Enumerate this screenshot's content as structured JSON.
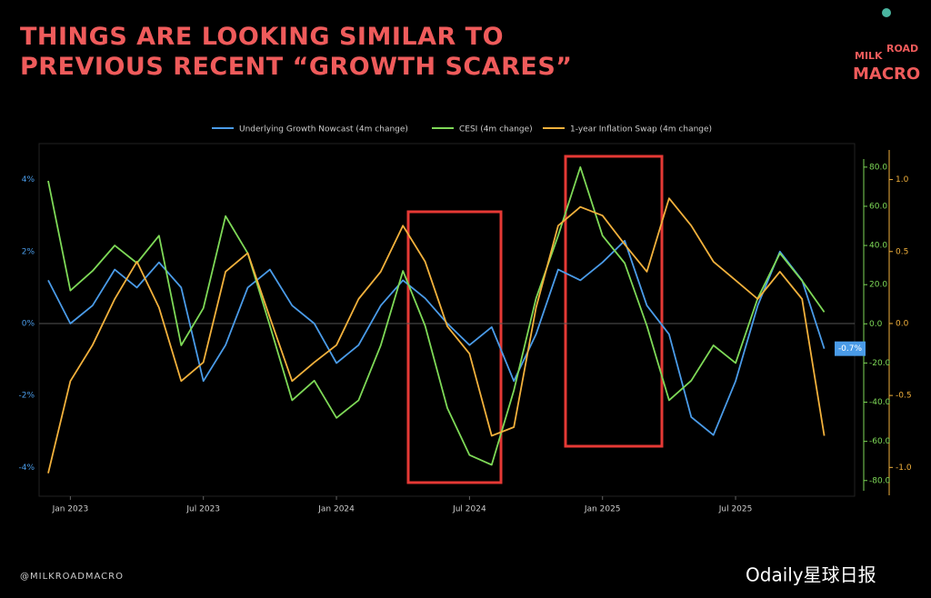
{
  "chart_data": {
    "type": "line",
    "title": "THINGS ARE LOOKING SIMILAR TO PREVIOUS RECENT “GROWTH SCARES”",
    "logo": [
      "MILK",
      "ROAD",
      "MACRO"
    ],
    "source": "@MILKROADMACRO",
    "watermark": "Odaily星球日报",
    "x": [
      "2022-12",
      "2023-01",
      "2023-02",
      "2023-03",
      "2023-04",
      "2023-05",
      "2023-06",
      "2023-07",
      "2023-08",
      "2023-09",
      "2023-10",
      "2023-11",
      "2023-12",
      "2024-01",
      "2024-02",
      "2024-03",
      "2024-04",
      "2024-05",
      "2024-06",
      "2024-07",
      "2024-08",
      "2024-09",
      "2024-10",
      "2024-11",
      "2024-12",
      "2025-01",
      "2025-02",
      "2025-03",
      "2025-04",
      "2025-05",
      "2025-06",
      "2025-07",
      "2025-08",
      "2025-09",
      "2025-10",
      "2025-11"
    ],
    "xlim": [
      "2022-12",
      "2025-12"
    ],
    "xticks": [
      {
        "value": "2023-01",
        "label": "Jan 2023"
      },
      {
        "value": "2023-07",
        "label": "Jul 2023"
      },
      {
        "value": "2024-01",
        "label": "Jan 2024"
      },
      {
        "value": "2024-07",
        "label": "Jul 2024"
      },
      {
        "value": "2025-01",
        "label": "Jan 2025"
      },
      {
        "value": "2025-07",
        "label": "Jul 2025"
      }
    ],
    "ylim": [
      -4.8,
      5.0
    ],
    "yticks": [
      {
        "value": 4,
        "label": "4%"
      },
      {
        "value": 2,
        "label": "2%"
      },
      {
        "value": 0,
        "label": "0%"
      },
      {
        "value": -2,
        "label": "-2%"
      },
      {
        "value": -4,
        "label": "-4%"
      }
    ],
    "y2lim": [
      -88,
      92
    ],
    "y2ticks": [
      {
        "value": 80,
        "label": "80.0"
      },
      {
        "value": 60,
        "label": "60.0"
      },
      {
        "value": 40,
        "label": "40.0"
      },
      {
        "value": 20,
        "label": "20.0"
      },
      {
        "value": 0,
        "label": "0.0"
      },
      {
        "value": -20,
        "label": "-20.0"
      },
      {
        "value": -40,
        "label": "-40.0"
      },
      {
        "value": -60,
        "label": "-60.0"
      },
      {
        "value": -80,
        "label": "-80.0"
      }
    ],
    "y3lim": [
      -1.2,
      1.25
    ],
    "y3ticks": [
      {
        "value": 1,
        "label": "1.0"
      },
      {
        "value": 0.5,
        "label": "0.5"
      },
      {
        "value": 0,
        "label": "0.0"
      },
      {
        "value": -0.5,
        "label": "-0.5"
      },
      {
        "value": -1,
        "label": "-1.0"
      }
    ],
    "series": [
      {
        "name": "Underlying Growth Nowcast (4m change)",
        "color": "#4a9be8",
        "axis": "y",
        "values": [
          1.2,
          0,
          0.5,
          1.5,
          1.0,
          1.7,
          1.0,
          -1.6,
          -0.6,
          1.0,
          1.5,
          0.5,
          0,
          -1.1,
          -0.6,
          0.5,
          1.2,
          0.7,
          0,
          -0.6,
          -0.1,
          -1.6,
          -0.3,
          1.5,
          1.2,
          1.7,
          2.3,
          0.5,
          -0.3,
          -2.6,
          -3.1,
          -1.6,
          0.5,
          2.0,
          1.2,
          -0.7
        ],
        "value_labels": [
          null,
          null,
          null,
          null,
          null,
          null,
          null,
          null,
          null,
          null,
          null,
          null,
          null,
          null,
          null,
          null,
          null,
          null,
          null,
          null,
          null,
          null,
          null,
          null,
          null,
          null,
          null,
          null,
          null,
          null,
          null,
          null,
          null,
          null,
          null,
          "-0.7%"
        ]
      },
      {
        "name": "CESI (4m change)",
        "color": "#7ed957",
        "axis": "y2",
        "values": [
          73,
          17,
          27,
          40,
          31,
          45,
          -11,
          8,
          55,
          36,
          -1,
          -39,
          -29,
          -48,
          -39,
          -11,
          27,
          -1,
          -43,
          -67,
          -72,
          -34,
          13,
          45,
          80,
          45,
          31,
          -1,
          -39,
          -29,
          -11,
          -20,
          13,
          36,
          22,
          6
        ]
      },
      {
        "name": "1-year Inflation Swap (4m change)",
        "color": "#f2b13c",
        "axis": "y3",
        "values": [
          -1.04,
          -0.4,
          -0.15,
          0.17,
          0.43,
          0.11,
          -0.4,
          -0.27,
          0.36,
          0.49,
          0.04,
          -0.4,
          -0.27,
          -0.15,
          0.17,
          0.36,
          0.68,
          0.43,
          -0.02,
          -0.21,
          -0.78,
          -0.72,
          0.11,
          0.68,
          0.81,
          0.75,
          0.55,
          0.36,
          0.87,
          0.68,
          0.43,
          0.3,
          0.17,
          0.36,
          0.17,
          -0.78
        ]
      }
    ]
  }
}
